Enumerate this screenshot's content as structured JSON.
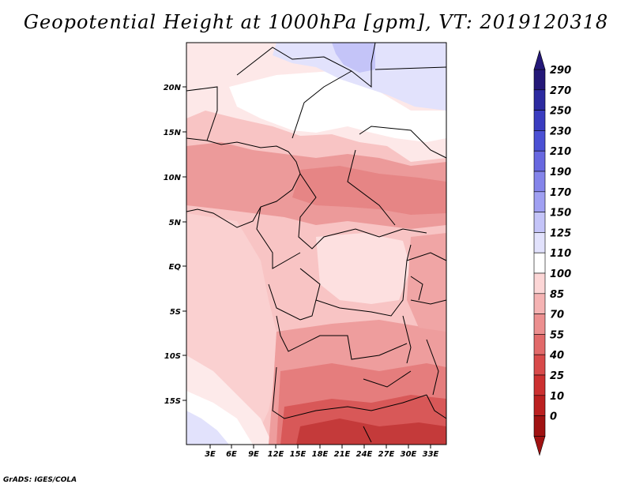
{
  "title": "Geopotential Height at 1000hPa [gpm], VT: 2019120318",
  "footer": "GrADS: IGES/COLA",
  "map": {
    "lon_labels": [
      "3E",
      "6E",
      "9E",
      "12E",
      "15E",
      "18E",
      "21E",
      "24E",
      "27E",
      "30E",
      "33E"
    ],
    "lat_labels": [
      "20N",
      "15N",
      "10N",
      "5N",
      "EQ",
      "5S",
      "10S",
      "15S"
    ]
  },
  "colorbar": {
    "levels": [
      "290",
      "270",
      "250",
      "230",
      "210",
      "190",
      "170",
      "150",
      "125",
      "110",
      "100",
      "85",
      "70",
      "55",
      "40",
      "25",
      "10",
      "0"
    ],
    "colors": [
      "#241878",
      "#2c2aa0",
      "#3a3cc0",
      "#4b50d4",
      "#6868e0",
      "#8484ea",
      "#a0a0f2",
      "#c4c4f8",
      "#e2e2fc",
      "#ffffff",
      "#fcd6d6",
      "#f5b3b3",
      "#ec8f8f",
      "#e26a6a",
      "#d84a4a",
      "#cc3030",
      "#bb2020",
      "#a01212"
    ]
  },
  "colors": {
    "high_blue": "#c4c4f8",
    "neutral_white": "#ffffff",
    "low_red": "#a01212"
  }
}
